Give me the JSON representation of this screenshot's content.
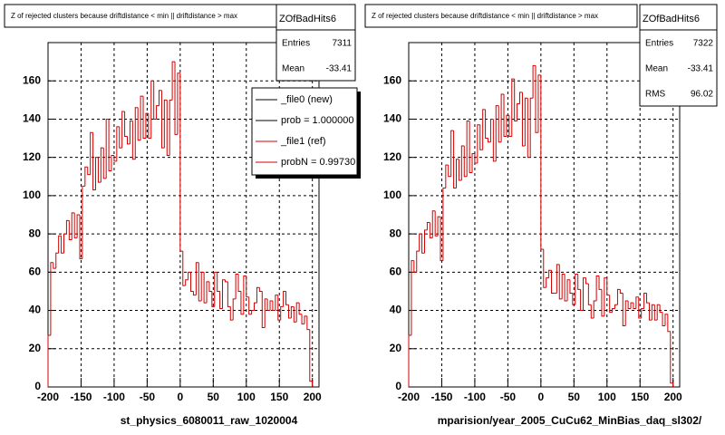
{
  "chart_data": [
    {
      "type": "histogram",
      "title": "Z of rejected clusters because driftdistance < min || driftdistance > max",
      "x_label": "st_physics_6080011_raw_1020004",
      "color": "#d00000",
      "grid": true,
      "stats": {
        "name": "ZOfBadHits6",
        "rows": [
          {
            "label": "Entries",
            "value": 7311
          },
          {
            "label": "Mean",
            "value": -33.41
          }
        ]
      },
      "legend": [
        {
          "text": "_file0 (new)",
          "color": "#000000"
        },
        {
          "text": "prob = 1.000000",
          "color": "#000000"
        },
        {
          "text": "_file1 (ref)",
          "color": "#d00000"
        },
        {
          "text": "probN = 0.99730",
          "color": "#d00000"
        }
      ],
      "xlim": [
        -200,
        210
      ],
      "ylim": [
        0,
        180
      ],
      "xticks": [
        -200,
        -150,
        -100,
        -50,
        0,
        50,
        100,
        150,
        200
      ],
      "yticks": [
        0,
        20,
        40,
        60,
        80,
        100,
        120,
        140,
        160
      ],
      "bins": [
        -200,
        -196,
        -192,
        -188,
        -184,
        -180,
        -176,
        -172,
        -168,
        -164,
        -160,
        -156,
        -152,
        -148,
        -144,
        -140,
        -136,
        -132,
        -128,
        -124,
        -120,
        -116,
        -112,
        -108,
        -104,
        -100,
        -96,
        -92,
        -88,
        -84,
        -80,
        -76,
        -72,
        -68,
        -64,
        -60,
        -56,
        -52,
        -48,
        -44,
        -40,
        -36,
        -32,
        -28,
        -24,
        -20,
        -16,
        -12,
        -8,
        -4,
        0,
        4,
        8,
        12,
        16,
        20,
        24,
        28,
        32,
        36,
        40,
        44,
        48,
        52,
        56,
        60,
        64,
        68,
        72,
        76,
        80,
        84,
        88,
        92,
        96,
        100,
        104,
        108,
        112,
        116,
        120,
        124,
        128,
        132,
        136,
        140,
        144,
        148,
        152,
        156,
        160,
        164,
        168,
        172,
        176,
        180,
        184,
        188,
        192,
        196,
        200
      ],
      "values": [
        27,
        65,
        62,
        70,
        79,
        70,
        80,
        87,
        77,
        91,
        78,
        90,
        67,
        105,
        115,
        111,
        133,
        103,
        120,
        107,
        125,
        109,
        140,
        113,
        121,
        118,
        136,
        125,
        144,
        131,
        127,
        139,
        119,
        146,
        129,
        152,
        130,
        143,
        130,
        160,
        140,
        147,
        155,
        125,
        150,
        121,
        150,
        170,
        132,
        164,
        71,
        53,
        56,
        60,
        50,
        48,
        65,
        45,
        60,
        44,
        55,
        50,
        42,
        60,
        50,
        41,
        56,
        55,
        42,
        35,
        46,
        59,
        50,
        38,
        58,
        47,
        38,
        40,
        44,
        52,
        50,
        31,
        46,
        40,
        45,
        40,
        48,
        35,
        42,
        50,
        43,
        36,
        42,
        34,
        44,
        38,
        33,
        37,
        30,
        3
      ]
    },
    {
      "type": "histogram",
      "title": "Z of rejected clusters because driftdistance < min || driftdistance > max",
      "x_label": "mparision/year_2005_CuCu62_MinBias_daq_sl302/",
      "color": "#d00000",
      "grid": true,
      "stats": {
        "name": "ZOfBadHits6",
        "rows": [
          {
            "label": "Entries",
            "value": 7322
          },
          {
            "label": "Mean",
            "value": -33.41
          },
          {
            "label": "RMS",
            "value": 96.02
          }
        ]
      },
      "xlim": [
        -200,
        210
      ],
      "ylim": [
        0,
        180
      ],
      "xticks": [
        -200,
        -150,
        -100,
        -50,
        0,
        50,
        100,
        150,
        200
      ],
      "yticks": [
        0,
        20,
        40,
        60,
        80,
        100,
        120,
        140,
        160
      ],
      "bins": [
        -200,
        -196,
        -192,
        -188,
        -184,
        -180,
        -176,
        -172,
        -168,
        -164,
        -160,
        -156,
        -152,
        -148,
        -144,
        -140,
        -136,
        -132,
        -128,
        -124,
        -120,
        -116,
        -112,
        -108,
        -104,
        -100,
        -96,
        -92,
        -88,
        -84,
        -80,
        -76,
        -72,
        -68,
        -64,
        -60,
        -56,
        -52,
        -48,
        -44,
        -40,
        -36,
        -32,
        -28,
        -24,
        -20,
        -16,
        -12,
        -8,
        -4,
        0,
        4,
        8,
        12,
        16,
        20,
        24,
        28,
        32,
        36,
        40,
        44,
        48,
        52,
        56,
        60,
        64,
        68,
        72,
        76,
        80,
        84,
        88,
        92,
        96,
        100,
        104,
        108,
        112,
        116,
        120,
        124,
        128,
        132,
        136,
        140,
        144,
        148,
        152,
        156,
        160,
        164,
        168,
        172,
        176,
        180,
        184,
        188,
        192,
        196,
        200
      ],
      "values": [
        27,
        66,
        60,
        71,
        80,
        70,
        82,
        86,
        78,
        92,
        79,
        89,
        66,
        104,
        116,
        110,
        134,
        104,
        119,
        108,
        126,
        110,
        139,
        112,
        122,
        117,
        137,
        124,
        145,
        130,
        128,
        140,
        118,
        147,
        128,
        153,
        131,
        142,
        131,
        161,
        139,
        148,
        154,
        126,
        151,
        120,
        151,
        168,
        133,
        163,
        72,
        52,
        57,
        61,
        49,
        49,
        64,
        46,
        59,
        45,
        56,
        49,
        43,
        59,
        51,
        40,
        57,
        54,
        43,
        36,
        45,
        58,
        51,
        37,
        57,
        48,
        39,
        41,
        43,
        51,
        49,
        32,
        45,
        41,
        44,
        41,
        47,
        36,
        41,
        49,
        44,
        35,
        43,
        35,
        43,
        39,
        32,
        38,
        29,
        2
      ]
    }
  ]
}
